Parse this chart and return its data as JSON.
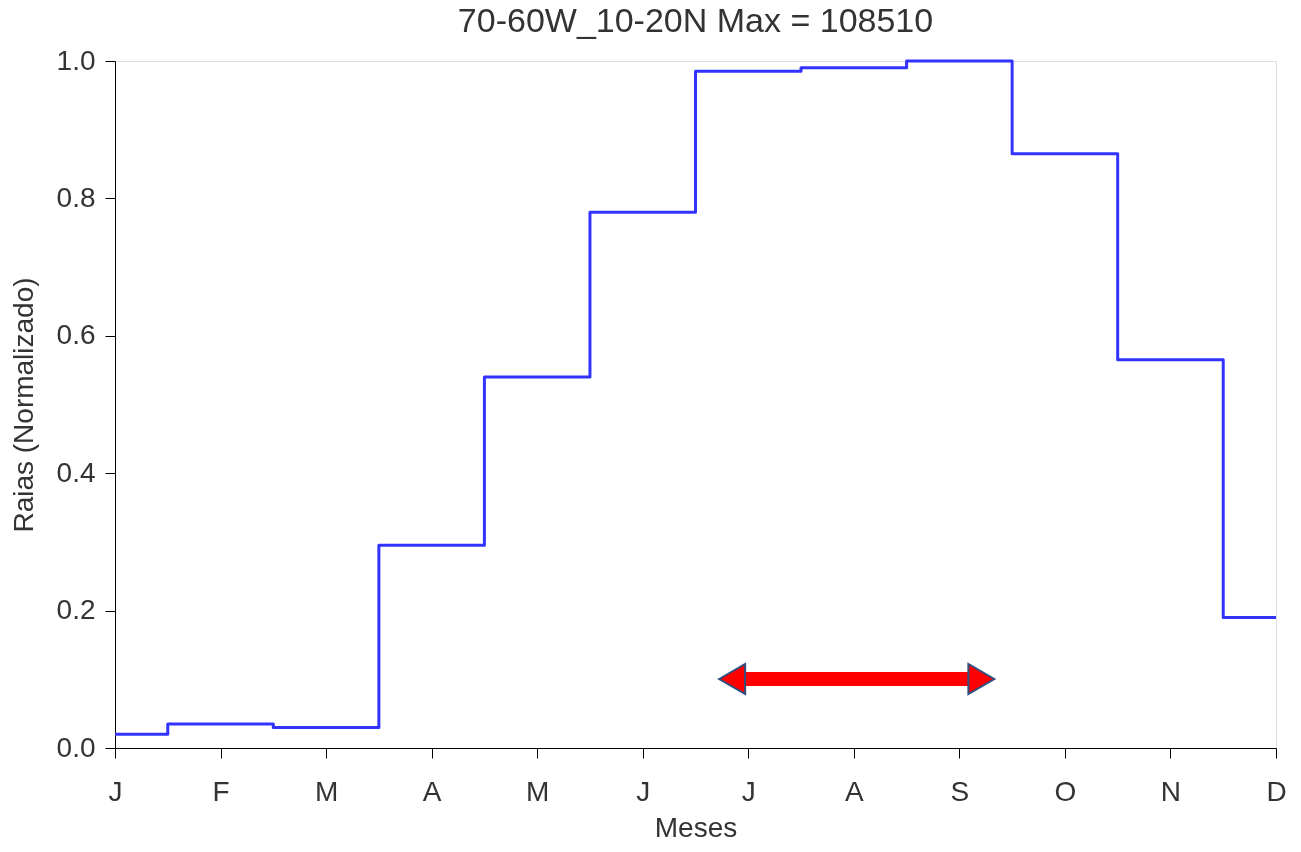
{
  "chart_data": {
    "type": "step",
    "title": "70-60W_10-20N Max =      108510",
    "xlabel": "Meses",
    "ylabel": "Raias (Normalizado)",
    "categories": [
      "J",
      "F",
      "M",
      "A",
      "M",
      "J",
      "J",
      "A",
      "S",
      "O",
      "N",
      "D"
    ],
    "series": [
      {
        "color": "#3333ff",
        "values": [
          0.02,
          0.035,
          0.03,
          0.295,
          0.54,
          0.78,
          0.985,
          0.99,
          1.0,
          0.865,
          0.565,
          0.19
        ]
      }
    ],
    "ylim": [
      0,
      1.0
    ],
    "yticks": [
      {
        "value": 0,
        "label": "0.0"
      },
      {
        "value": 0.2,
        "label": "0.2"
      },
      {
        "value": 0.4,
        "label": "0.4"
      },
      {
        "value": 0.6,
        "label": "0.6"
      },
      {
        "value": 0.8,
        "label": "0.8"
      },
      {
        "value": 1.0,
        "label": "1.0"
      }
    ],
    "grid": false,
    "marker": "none",
    "line_style": "solid"
  }
}
